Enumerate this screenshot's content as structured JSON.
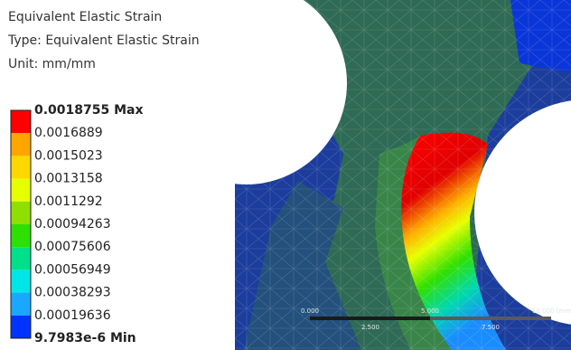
{
  "header": {
    "title": "Equivalent Elastic Strain",
    "type": "Type: Equivalent Elastic Strain",
    "unit": "Unit: mm/mm"
  },
  "legend": {
    "labels": [
      "0.0018755 Max",
      "0.0016889",
      "0.0015023",
      "0.0013158",
      "0.0011292",
      "0.00094263",
      "0.00075606",
      "0.00056949",
      "0.00038293",
      "0.00019636",
      "9.7983e-6 Min"
    ],
    "colors": [
      "#ff0000",
      "#ffa500",
      "#ffd700",
      "#e6ff00",
      "#8fe000",
      "#2ee000",
      "#00e08a",
      "#00e6e6",
      "#19a8ff",
      "#0033ff"
    ]
  },
  "scale_bar": {
    "labels": [
      "0.000",
      "5.000",
      "10.000 (mm)",
      "2.500",
      "7.500"
    ]
  }
}
